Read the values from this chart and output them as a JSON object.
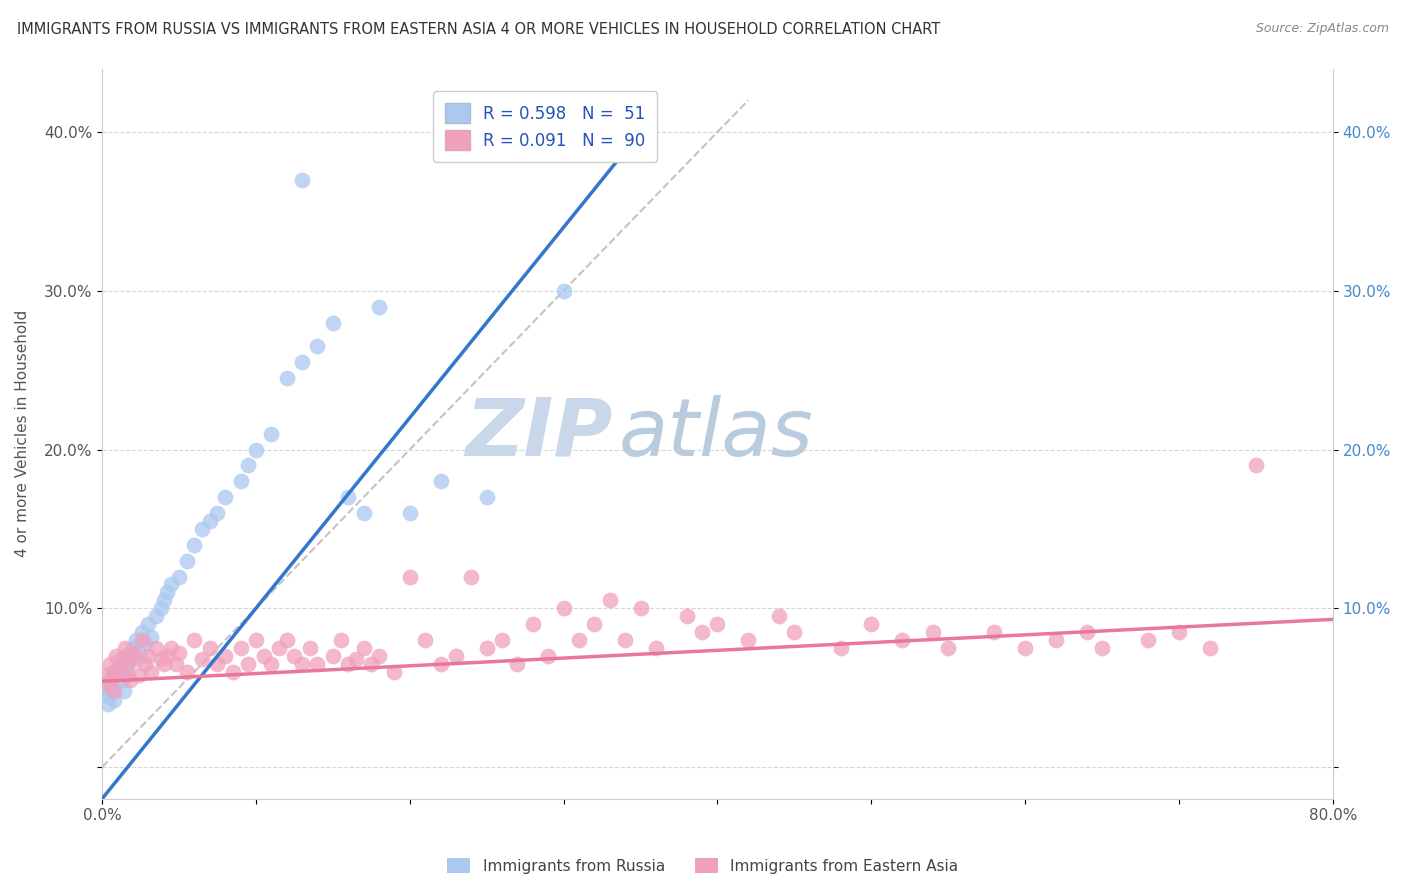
{
  "title": "IMMIGRANTS FROM RUSSIA VS IMMIGRANTS FROM EASTERN ASIA 4 OR MORE VEHICLES IN HOUSEHOLD CORRELATION CHART",
  "source": "Source: ZipAtlas.com",
  "ylabel": "4 or more Vehicles in Household",
  "xlim": [
    0.0,
    0.8
  ],
  "ylim": [
    -0.02,
    0.44
  ],
  "legend_R1": "R = 0.598",
  "legend_N1": "N = 51",
  "legend_R2": "R = 0.091",
  "legend_N2": "N = 90",
  "color_russia": "#aac8f0",
  "color_eastern_asia": "#f0a0bc",
  "color_russia_line": "#3377cc",
  "color_eastern_asia_line": "#e87899",
  "watermark_zip_color": "#cddcee",
  "watermark_atlas_color": "#b8ccdf",
  "background_color": "#ffffff",
  "grid_color": "#cccccc",
  "russia_x": [
    0.002,
    0.003,
    0.004,
    0.005,
    0.006,
    0.007,
    0.008,
    0.009,
    0.01,
    0.012,
    0.013,
    0.014,
    0.015,
    0.016,
    0.017,
    0.018,
    0.02,
    0.022,
    0.024,
    0.026,
    0.028,
    0.03,
    0.032,
    0.035,
    0.038,
    0.04,
    0.042,
    0.045,
    0.05,
    0.055,
    0.06,
    0.065,
    0.07,
    0.075,
    0.08,
    0.09,
    0.095,
    0.1,
    0.11,
    0.12,
    0.13,
    0.14,
    0.15,
    0.16,
    0.17,
    0.18,
    0.2,
    0.22,
    0.25,
    0.3,
    0.13
  ],
  "russia_y": [
    0.05,
    0.045,
    0.04,
    0.055,
    0.048,
    0.052,
    0.042,
    0.058,
    0.06,
    0.065,
    0.055,
    0.048,
    0.07,
    0.062,
    0.058,
    0.068,
    0.075,
    0.08,
    0.072,
    0.085,
    0.078,
    0.09,
    0.082,
    0.095,
    0.1,
    0.105,
    0.11,
    0.115,
    0.12,
    0.13,
    0.14,
    0.15,
    0.155,
    0.16,
    0.17,
    0.18,
    0.19,
    0.2,
    0.21,
    0.245,
    0.255,
    0.265,
    0.28,
    0.17,
    0.16,
    0.29,
    0.16,
    0.18,
    0.17,
    0.3,
    0.37
  ],
  "eastern_x": [
    0.002,
    0.004,
    0.005,
    0.006,
    0.007,
    0.008,
    0.009,
    0.01,
    0.012,
    0.014,
    0.015,
    0.016,
    0.018,
    0.02,
    0.022,
    0.024,
    0.026,
    0.028,
    0.03,
    0.032,
    0.035,
    0.038,
    0.04,
    0.042,
    0.045,
    0.048,
    0.05,
    0.055,
    0.06,
    0.065,
    0.07,
    0.075,
    0.08,
    0.085,
    0.09,
    0.095,
    0.1,
    0.105,
    0.11,
    0.115,
    0.12,
    0.125,
    0.13,
    0.135,
    0.14,
    0.15,
    0.155,
    0.16,
    0.165,
    0.17,
    0.175,
    0.18,
    0.19,
    0.2,
    0.21,
    0.22,
    0.23,
    0.24,
    0.25,
    0.26,
    0.27,
    0.28,
    0.29,
    0.3,
    0.31,
    0.32,
    0.33,
    0.34,
    0.35,
    0.36,
    0.38,
    0.39,
    0.4,
    0.42,
    0.44,
    0.45,
    0.48,
    0.5,
    0.52,
    0.54,
    0.55,
    0.58,
    0.6,
    0.62,
    0.64,
    0.65,
    0.68,
    0.7,
    0.72,
    0.75
  ],
  "eastern_y": [
    0.058,
    0.052,
    0.065,
    0.055,
    0.06,
    0.048,
    0.07,
    0.062,
    0.068,
    0.058,
    0.075,
    0.065,
    0.055,
    0.072,
    0.068,
    0.058,
    0.08,
    0.065,
    0.07,
    0.06,
    0.075,
    0.068,
    0.065,
    0.07,
    0.075,
    0.065,
    0.072,
    0.06,
    0.08,
    0.068,
    0.075,
    0.065,
    0.07,
    0.06,
    0.075,
    0.065,
    0.08,
    0.07,
    0.065,
    0.075,
    0.08,
    0.07,
    0.065,
    0.075,
    0.065,
    0.07,
    0.08,
    0.065,
    0.068,
    0.075,
    0.065,
    0.07,
    0.06,
    0.12,
    0.08,
    0.065,
    0.07,
    0.12,
    0.075,
    0.08,
    0.065,
    0.09,
    0.07,
    0.1,
    0.08,
    0.09,
    0.105,
    0.08,
    0.1,
    0.075,
    0.095,
    0.085,
    0.09,
    0.08,
    0.095,
    0.085,
    0.075,
    0.09,
    0.08,
    0.085,
    0.075,
    0.085,
    0.075,
    0.08,
    0.085,
    0.075,
    0.08,
    0.085,
    0.075,
    0.19
  ],
  "russia_line_x": [
    0.0,
    0.35
  ],
  "russia_line_y": [
    -0.02,
    0.4
  ],
  "eastern_line_x": [
    0.0,
    0.8
  ],
  "eastern_line_y": [
    0.054,
    0.093
  ]
}
